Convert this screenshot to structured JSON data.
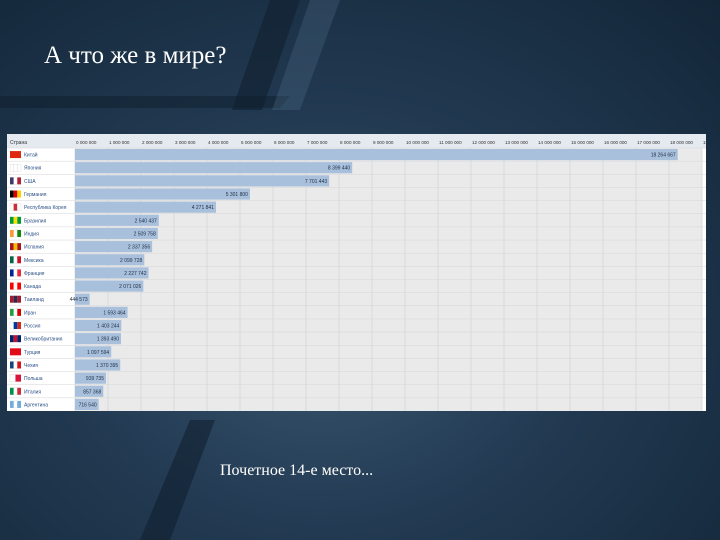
{
  "slide": {
    "title": "А что же в мире?",
    "caption": "Почетное 14-е место..."
  },
  "chart_data": {
    "type": "bar",
    "orientation": "horizontal",
    "header_label": "Страна",
    "x_ticks": [
      0,
      1000000,
      2000000,
      3000000,
      4000000,
      5000000,
      6000000,
      7000000,
      8000000,
      9000000,
      10000000,
      11000000,
      12000000,
      13000000,
      14000000,
      15000000,
      16000000,
      17000000,
      18000000,
      19000000
    ],
    "x_tick_labels": [
      "0 000 000",
      "1 000 000",
      "2 000 000",
      "3 000 000",
      "4 000 000",
      "5 000 000",
      "6 000 000",
      "7 000 000",
      "8 000 000",
      "9 000 000",
      "10 000 000",
      "11 000 000",
      "12 000 000",
      "13 000 000",
      "14 000 000",
      "15 000 000",
      "16 000 000",
      "17 000 000",
      "18 000 000",
      "19 000 000"
    ],
    "xlim": [
      0,
      19000000
    ],
    "grid": true,
    "categories": [
      "Китай",
      "Япония",
      "США",
      "Германия",
      "Республика Корея",
      "Бразилия",
      "Индия",
      "Испания",
      "Мексика",
      "Франция",
      "Канада",
      "Таиланд",
      "Иран",
      "Россия",
      "Великобритания",
      "Турция",
      "Чехия",
      "Польша",
      "Италия",
      "Аргентина"
    ],
    "values": [
      18264667,
      8399440,
      7701443,
      5301800,
      4271841,
      2540437,
      2509758,
      2337356,
      2099728,
      2227742,
      2071026,
      444573,
      1593464,
      1403244,
      1393490,
      1097594,
      1370395,
      939735,
      857368,
      716540
    ],
    "value_labels": [
      "18 264 667",
      "8 399 440",
      "7 701 443",
      "5 301 800",
      "4 271 841",
      "2 540 437",
      "2 509 758",
      "2 337 356",
      "2 099 728",
      "2 227 742",
      "2 071 026",
      "444 573",
      "1 593 464",
      "1 403 244",
      "1 393 490",
      "1 097 594",
      "1 370 395",
      "939 735",
      "857 368",
      "716 540"
    ],
    "flags": [
      [
        "#de2910"
      ],
      [
        "#ffffff",
        "#ffffff",
        "#ffffff"
      ],
      [
        "#3c3b6e",
        "#ffffff",
        "#b22234"
      ],
      [
        "#000000",
        "#dd0000",
        "#ffce00"
      ],
      [
        "#ffffff",
        "#cd2e3a",
        "#ffffff"
      ],
      [
        "#009c3b",
        "#ffdf00",
        "#009c3b"
      ],
      [
        "#ff9933",
        "#ffffff",
        "#138808"
      ],
      [
        "#aa151b",
        "#f1bf00",
        "#aa151b"
      ],
      [
        "#006847",
        "#ffffff",
        "#ce1126"
      ],
      [
        "#002395",
        "#ffffff",
        "#ed2939"
      ],
      [
        "#ff0000",
        "#ffffff",
        "#ff0000"
      ],
      [
        "#a51931",
        "#2d2a4a",
        "#a51931"
      ],
      [
        "#239f40",
        "#ffffff",
        "#da0000"
      ],
      [
        "#ffffff",
        "#0039a6",
        "#d52b1e"
      ],
      [
        "#012169",
        "#c8102e",
        "#012169"
      ],
      [
        "#e30a17"
      ],
      [
        "#11457e",
        "#ffffff",
        "#d7141a"
      ],
      [
        "#ffffff",
        "#dc143c"
      ],
      [
        "#009246",
        "#ffffff",
        "#ce2b37"
      ],
      [
        "#74acdf",
        "#ffffff",
        "#74acdf"
      ]
    ],
    "colors": {
      "bar": "#a9c0dc",
      "header_bg": "#e5eaf0",
      "row_bg": "#eaeaea",
      "label_color": "#2a4f86",
      "grid": "#c8d0da"
    }
  }
}
